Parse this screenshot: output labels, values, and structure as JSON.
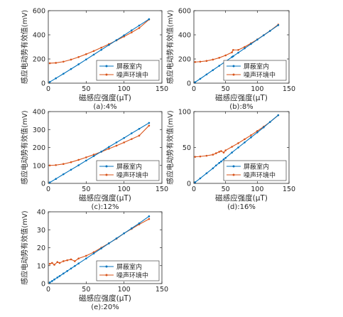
{
  "panels": [
    {
      "caption": "(a):4%",
      "xlabel": "磁感应强度(μT)",
      "ylabel": "感应电动势有效值(mV)",
      "xlim": [
        0,
        150
      ],
      "xticks": [
        0,
        50,
        100,
        150
      ],
      "ylim": [
        0,
        600
      ],
      "yticks": [
        0,
        200,
        400,
        600
      ],
      "legend": [
        "屏蔽室内",
        "噪声环境中"
      ],
      "colors": [
        "#0072BD",
        "#D95319"
      ]
    },
    {
      "caption": "(b):8%",
      "xlabel": "磁感应强度(μT)",
      "ylabel": "感应电动势有效值(mV)",
      "xlim": [
        0,
        150
      ],
      "xticks": [
        0,
        50,
        100,
        150
      ],
      "ylim": [
        0,
        600
      ],
      "yticks": [
        0,
        200,
        400,
        600
      ],
      "legend": [
        "屏蔽室内",
        "噪声环境中"
      ],
      "colors": [
        "#0072BD",
        "#D95319"
      ]
    },
    {
      "caption": "(c):12%",
      "xlabel": "磁感应强度(μT)",
      "ylabel": "感应电动势有效值(mV)",
      "xlim": [
        0,
        150
      ],
      "xticks": [
        0,
        50,
        100,
        150
      ],
      "ylim": [
        0,
        400
      ],
      "yticks": [
        0,
        100,
        200,
        300,
        400
      ],
      "legend": [
        "屏蔽室内",
        "噪声环境中"
      ],
      "colors": [
        "#0072BD",
        "#D95319"
      ]
    },
    {
      "caption": "(d):16%",
      "xlabel": "磁感应强度(μT)",
      "ylabel": "感应电动势有效值(mV)",
      "xlim": [
        0,
        150
      ],
      "xticks": [
        0,
        50,
        100,
        150
      ],
      "ylim": [
        0,
        100
      ],
      "yticks": [
        0,
        50,
        100
      ],
      "legend": [
        "屏蔽室内",
        "噪声环境中"
      ],
      "colors": [
        "#0072BD",
        "#D95319"
      ]
    },
    {
      "caption": "(e):20%",
      "xlabel": "磁感应强度(μT)",
      "ylabel": "感应电动势有效值(mV)",
      "xlim": [
        0,
        150
      ],
      "xticks": [
        0,
        50,
        100,
        150
      ],
      "ylim": [
        0,
        40
      ],
      "yticks": [
        0,
        10,
        20,
        30,
        40
      ],
      "legend": [
        "屏蔽室内",
        "噪声环境中"
      ],
      "colors": [
        "#0072BD",
        "#D95319"
      ]
    }
  ],
  "chart_data": [
    {
      "type": "line",
      "xlabel": "磁感应强度(μT)",
      "ylabel": "感应电动势有效值(mV)",
      "xlim": [
        0,
        150
      ],
      "ylim": [
        0,
        600
      ],
      "x": [
        2,
        10,
        20,
        30,
        40,
        50,
        60,
        70,
        80,
        90,
        100,
        110,
        120,
        133
      ],
      "series": [
        {
          "name": "屏蔽室内",
          "values": [
            10,
            40,
            78,
            117,
            156,
            196,
            236,
            276,
            316,
            356,
            396,
            437,
            477,
            530
          ]
        },
        {
          "name": "噪声环境中",
          "values": [
            165,
            168,
            178,
            195,
            216,
            240,
            266,
            294,
            323,
            354,
            386,
            420,
            456,
            527
          ]
        }
      ]
    },
    {
      "type": "line",
      "xlabel": "磁感应强度(μT)",
      "ylabel": "感应电动势有效值(mV)",
      "xlim": [
        0,
        150
      ],
      "ylim": [
        0,
        600
      ],
      "x": [
        2,
        10,
        20,
        30,
        40,
        50,
        60,
        62,
        70,
        80,
        90,
        100,
        110,
        120,
        133
      ],
      "series": [
        {
          "name": "屏蔽室内",
          "values": [
            8,
            36,
            72,
            108,
            144,
            180,
            216,
            223,
            252,
            288,
            324,
            360,
            396,
            432,
            480
          ]
        },
        {
          "name": "噪声环境中",
          "values": [
            175,
            178,
            184,
            195,
            210,
            230,
            255,
            275,
            275,
            300,
            330,
            362,
            397,
            433,
            485
          ]
        }
      ]
    },
    {
      "type": "line",
      "xlabel": "磁感应强度(μT)",
      "ylabel": "感应电动势有效值(mV)",
      "xlim": [
        0,
        150
      ],
      "ylim": [
        0,
        400
      ],
      "x": [
        2,
        10,
        20,
        30,
        40,
        50,
        60,
        70,
        80,
        90,
        100,
        110,
        120,
        133
      ],
      "series": [
        {
          "name": "屏蔽室内",
          "values": [
            5,
            25,
            51,
            76,
            101,
            127,
            152,
            177,
            203,
            228,
            253,
            279,
            304,
            337
          ]
        },
        {
          "name": "噪声环境中",
          "values": [
            100,
            102,
            108,
            118,
            131,
            145,
            160,
            176,
            193,
            210,
            228,
            247,
            266,
            322
          ]
        }
      ]
    },
    {
      "type": "line",
      "xlabel": "磁感应强度(μT)",
      "ylabel": "感应电动势有效值(mV)",
      "xlim": [
        0,
        150
      ],
      "ylim": [
        0,
        100
      ],
      "x": [
        2,
        10,
        20,
        30,
        35,
        40,
        43,
        47,
        50,
        60,
        70,
        80,
        90,
        100,
        110,
        120,
        133
      ],
      "series": [
        {
          "name": "屏蔽室内",
          "values": [
            1.5,
            7,
            14,
            21,
            25,
            28.5,
            30.5,
            33.5,
            35.5,
            43,
            50,
            57,
            64,
            71,
            78,
            85.5,
            95
          ]
        },
        {
          "name": "噪声环境中",
          "values": [
            37,
            37.5,
            38.5,
            40,
            42,
            44,
            45,
            43,
            46,
            51,
            56,
            61.5,
            67,
            73,
            79,
            85.5,
            95
          ]
        }
      ]
    },
    {
      "type": "line",
      "xlabel": "磁感应强度(μT)",
      "ylabel": "感应电动势有效值(mV)",
      "xlim": [
        0,
        150
      ],
      "ylim": [
        0,
        40
      ],
      "x": [
        2,
        5,
        8,
        12,
        15,
        20,
        25,
        30,
        35,
        40,
        50,
        60,
        70,
        80,
        90,
        100,
        110,
        120,
        133
      ],
      "series": [
        {
          "name": "屏蔽室内",
          "values": [
            0.6,
            1.4,
            2.3,
            3.4,
            4.2,
            5.6,
            7,
            8.4,
            9.8,
            11.2,
            14,
            16.8,
            19.6,
            22.4,
            25.2,
            28,
            30.8,
            33.6,
            37.5
          ]
        },
        {
          "name": "噪声环境中",
          "values": [
            11,
            11.5,
            10.5,
            12,
            11.5,
            12.5,
            13,
            13.5,
            12.5,
            14,
            15.5,
            17.5,
            20,
            22.5,
            25,
            28,
            30.5,
            33,
            36
          ]
        }
      ]
    }
  ]
}
